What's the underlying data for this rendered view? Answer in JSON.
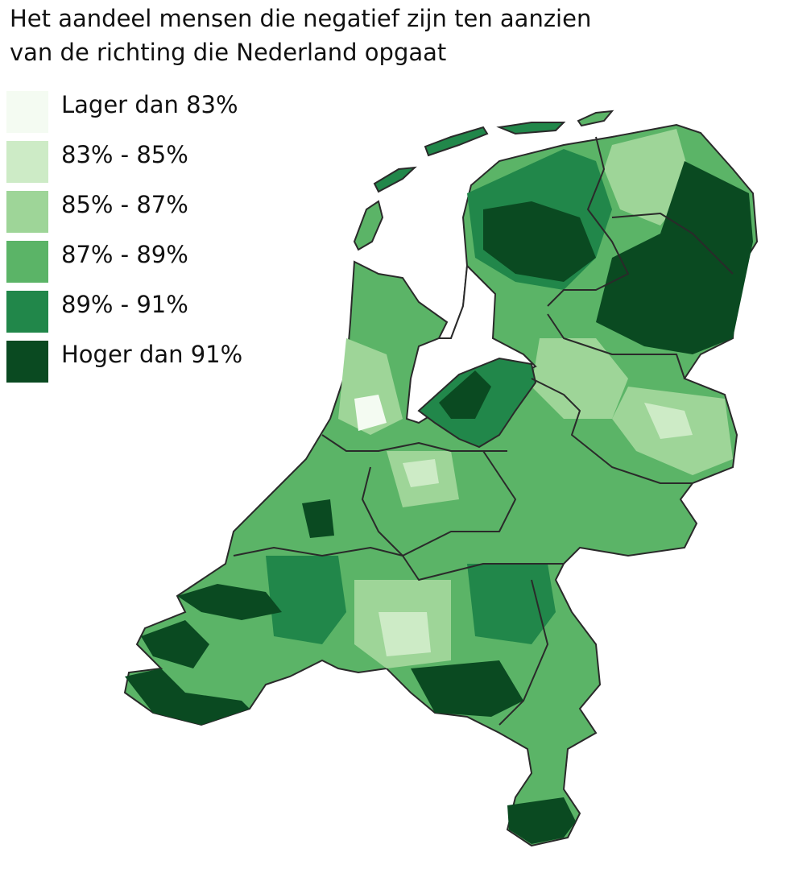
{
  "title": [
    "Het aandeel mensen die negatief zijn ten aanzien",
    "van de richting die Nederland opgaat"
  ],
  "legend": [
    {
      "label": "Lager dan 83%",
      "color": "#f4fbf2"
    },
    {
      "label": "83% - 85%",
      "color": "#cdebc6"
    },
    {
      "label": "85% - 87%",
      "color": "#9ed598"
    },
    {
      "label": "87% - 89%",
      "color": "#5bb467"
    },
    {
      "label": "89% - 91%",
      "color": "#21874a"
    },
    {
      "label": "Hoger dan 91%",
      "color": "#0a4a21"
    }
  ]
}
